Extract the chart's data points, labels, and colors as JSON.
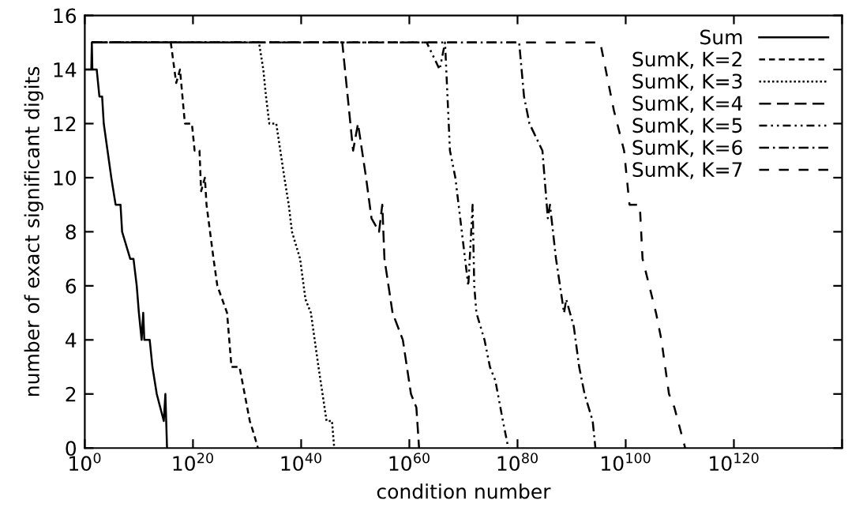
{
  "chart_data": {
    "type": "line",
    "xlabel": "condition number",
    "ylabel": "number of exact significant digits",
    "log": "x",
    "xlim": [
      1,
      1e+140
    ],
    "ylim": [
      0,
      16
    ],
    "xticks": [
      {
        "value": 1,
        "label": "10$^{0}$"
      },
      {
        "value": 1e+20,
        "label": "10$^{20}$"
      },
      {
        "value": 1e+40,
        "label": "10$^{40}$"
      },
      {
        "value": 1e+60,
        "label": "10$^{60}$"
      },
      {
        "value": 1e+80,
        "label": "10$^{80}$"
      },
      {
        "value": 1e+100,
        "label": "10$^{100}$"
      },
      {
        "value": 1e+120,
        "label": "10$^{120}$"
      },
      {
        "value": 1e+140,
        "label": null
      }
    ],
    "yticks": [
      0,
      2,
      4,
      6,
      8,
      10,
      12,
      14,
      16
    ],
    "grid": false,
    "legend": "top right",
    "marker": "none",
    "series": [
      {
        "name": "Sum",
        "color": "#000000",
        "line_style": "solid",
        "x": [
          1,
          16.0,
          20.0,
          25.0,
          160.0,
          500.0,
          1600.0,
          3200.0,
          16000.0,
          79000.0,
          500000.0,
          4000000.0,
          7900000.0,
          250000000.0,
          1000000000.0,
          4000000000.0,
          10000000000.0,
          32000000000.0,
          63000000000.0,
          100000000000.0,
          1000000000000.0,
          3200000000000.0,
          20000000000000.0,
          400000000000000.0,
          790000000000000.0,
          1600000000000000.0
        ],
        "values": [
          14,
          14,
          15,
          14,
          14,
          13,
          13,
          12,
          11,
          10,
          9,
          9,
          8,
          7,
          7,
          6,
          5,
          4,
          5,
          4,
          4,
          3,
          2,
          1,
          2,
          0
        ]
      },
      {
        "name": "SumK, K=2",
        "color": "#000000",
        "line_style": "dashed",
        "x": [
          20.0,
          7900000000000000.0,
          7.9e+16,
          4e+17,
          3.2e+18,
          6.3e+19,
          2e+20,
          1.6e+21,
          3.2e+21,
          1.6e+22,
          3.2e+22,
          6.3e+23,
          3.2e+24,
          2e+26,
          1.3e+27,
          4e+28,
          3.2e+30,
          2e+31,
          1e+32
        ],
        "values": [
          15,
          15,
          13.5,
          14,
          12,
          12,
          11,
          11,
          9.5,
          10,
          9,
          7,
          6,
          5,
          3,
          3,
          1,
          0.5,
          0
        ]
      },
      {
        "name": "SumK, K=3",
        "color": "#000000",
        "line_style": "dotted",
        "x": [
          20.0,
          1.6e+32,
          1e+33,
          3.2e+33,
          1.3e+34,
          2.5e+35,
          7.9e+36,
          5e+37,
          2e+38,
          6.3e+39,
          6.3e+40,
          6.3e+41,
          1.6e+43,
          5e+44,
          5e+45,
          1.3e+46
        ],
        "values": [
          15,
          15,
          14,
          13,
          12,
          12,
          10,
          9,
          8,
          7,
          5.5,
          5,
          3,
          1,
          1,
          0
        ]
      },
      {
        "name": "SumK, K=4",
        "color": "#000000",
        "line_style": "longdash",
        "x": [
          20.0,
          4e+47,
          4e+48,
          4e+49,
          3.2e+50,
          1e+52,
          1e+53,
          2.5e+54,
          1e+55,
          2.5e+55,
          7.9e+56,
          6.3e+58,
          2e+60,
          2e+61,
          6.3e+61
        ],
        "values": [
          15,
          15,
          13,
          11,
          12,
          10,
          8.5,
          8,
          9,
          7,
          5,
          4,
          2,
          1.5,
          0
        ]
      },
      {
        "name": "SumK, K=5",
        "color": "#000000",
        "line_style": "dashdotdot",
        "x": [
          20.0,
          1.6e+63,
          4e+65,
          4e+66,
          3.2e+67,
          3.2e+68,
          1e+70,
          7.9e+70,
          5e+71,
          1e+72,
          2.5e+72,
          7.9e+73,
          7.9e+74,
          7.9e+75,
          2e+77,
          2e+78
        ],
        "values": [
          15,
          15,
          14,
          15,
          11,
          10,
          7.5,
          6,
          9,
          6,
          5,
          4,
          3,
          2.5,
          1,
          0
        ]
      },
      {
        "name": "SumK, K=6",
        "color": "#000000",
        "line_style": "dashdot",
        "x": [
          20.0,
          2e+80,
          1.6e+81,
          1.6e+82,
          4e+84,
          4e+85,
          1e+86,
          1.3e+87,
          4e+88,
          1e+89,
          2.5e+90,
          2.5e+91,
          2.5e+92,
          7.9e+93,
          2.5e+94
        ],
        "values": [
          15,
          15,
          13,
          12,
          11,
          8.5,
          9,
          7,
          5,
          5.5,
          4.5,
          3,
          2,
          1,
          0
        ]
      },
      {
        "name": "SumK, K=7",
        "color": "#000000",
        "line_style": "sparsedash",
        "x": [
          20.0,
          2e+95,
          2e+96,
          6.3e+97,
          5e+99,
          5e+100,
          4e+102,
          1.3e+103,
          4e+105,
          4e+106,
          1e+108,
          1e+109,
          1e+111
        ],
        "values": [
          15,
          15,
          14,
          12.5,
          11,
          9,
          9,
          7,
          5,
          4,
          2,
          1.5,
          0
        ]
      }
    ]
  }
}
